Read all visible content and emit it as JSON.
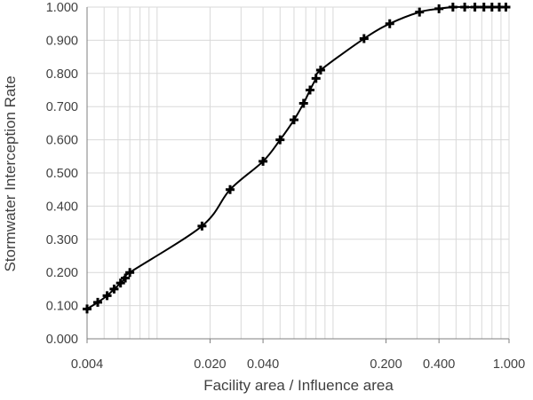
{
  "chart_data": {
    "type": "scatter",
    "title": "",
    "xlabel": "Facility area / Influence area",
    "ylabel": "Stormwater Interception Rate",
    "x_scale": "log",
    "xlim": [
      0.004,
      1.0
    ],
    "ylim": [
      0.0,
      1.0
    ],
    "x_ticks": [
      0.004,
      0.02,
      0.04,
      0.2,
      0.4,
      1.0
    ],
    "x_tick_labels": [
      "0.004",
      "0.020",
      "0.040",
      "0.200",
      "0.400",
      "1.000"
    ],
    "y_ticks": [
      0.0,
      0.1,
      0.2,
      0.3,
      0.4,
      0.5,
      0.6,
      0.7,
      0.8,
      0.9,
      1.0
    ],
    "y_tick_labels": [
      "0.000",
      "0.100",
      "0.200",
      "0.300",
      "0.400",
      "0.500",
      "0.600",
      "0.700",
      "0.800",
      "0.900",
      "1.000"
    ],
    "grid": true,
    "line_color": "#000000",
    "grid_color": "#d9d9d9",
    "marker": "plus",
    "series": [
      {
        "x": [
          0.004,
          0.0046,
          0.0052,
          0.0057,
          0.0062,
          0.0066,
          0.007,
          0.018,
          0.026,
          0.04,
          0.05,
          0.06,
          0.068,
          0.074,
          0.08,
          0.085,
          0.15,
          0.21,
          0.31,
          0.4,
          0.48,
          0.56,
          0.64,
          0.72,
          0.8,
          0.88,
          0.96
        ],
        "y": [
          0.09,
          0.11,
          0.13,
          0.15,
          0.168,
          0.183,
          0.2,
          0.34,
          0.45,
          0.535,
          0.6,
          0.66,
          0.71,
          0.75,
          0.785,
          0.81,
          0.905,
          0.95,
          0.985,
          0.995,
          1.0,
          1.0,
          1.0,
          1.0,
          1.0,
          1.0,
          1.0
        ]
      }
    ]
  }
}
